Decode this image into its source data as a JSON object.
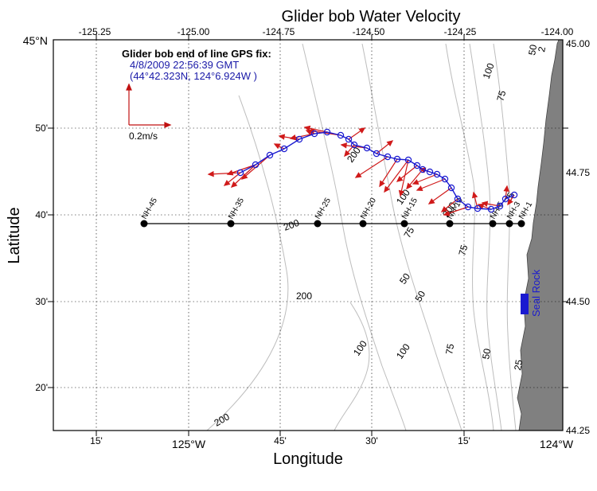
{
  "title": "Glider bob Water Velocity",
  "x_axis": {
    "label": "Longitude",
    "top_ticks": [
      "-125.25",
      "-125.00",
      "-124.75",
      "-124.50",
      "-124.25",
      "-124.00"
    ],
    "bottom_minutes": [
      "15'",
      "45'",
      "30'",
      "15'"
    ],
    "bottom_degrees": [
      "125°W",
      "124°W"
    ]
  },
  "y_axis": {
    "label": "Latitude",
    "left_minutes": [
      "50'",
      "40'",
      "30'",
      "20'"
    ],
    "left_top": "45°N",
    "right_ticks": [
      "45.00",
      "44.75",
      "44.50",
      "44.25"
    ]
  },
  "gps_fix": {
    "title": "Glider bob end of line GPS fix:",
    "time": "4/8/2009 22:56:39 GMT",
    "position": "(44°42.323N, 124°6.924W )"
  },
  "scale": {
    "label": "0.2m/s",
    "value_mps": 0.2
  },
  "stations": [
    "NH-45",
    "NH-35",
    "NH-25",
    "NH-20",
    "NH-15",
    "NH-10",
    "NH-5",
    "NH-3",
    "NH-1"
  ],
  "contour_labels": [
    "200",
    "100",
    "75",
    "50",
    "25",
    "2",
    "200",
    "75",
    "100",
    "200",
    "200",
    "75",
    "50",
    "50",
    "100",
    "100",
    "75",
    "50",
    "25",
    "200"
  ],
  "landmarks": {
    "seal_rock": "Seal Rock"
  },
  "colors": {
    "track": "#1a1ad0",
    "arrows": "#d01a1a",
    "land": "#808080",
    "contours": "#b8b8b8"
  }
}
